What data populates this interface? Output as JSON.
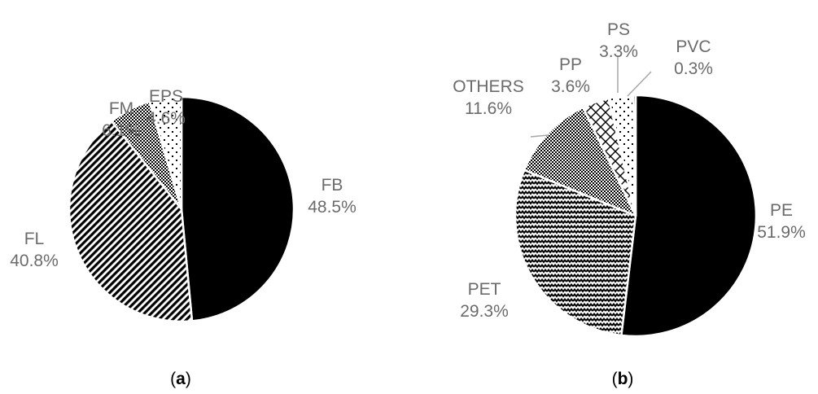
{
  "chart_data": [
    {
      "type": "pie",
      "caption": "(a)",
      "caption_letter": "a",
      "slices": [
        {
          "label": "FB",
          "value": 48.5,
          "value_label": "48.5%",
          "fill": "solid",
          "color": "#000000"
        },
        {
          "label": "FL",
          "value": 40.8,
          "value_label": "40.8%",
          "fill": "diagonal-stripes",
          "color": "#000000"
        },
        {
          "label": "FM",
          "value": 6.1,
          "value_label": "6.1%",
          "fill": "checker",
          "color": "#000000"
        },
        {
          "label": "EPS",
          "value": 4.6,
          "value_label": "4.6%",
          "fill": "sparse-dots",
          "color": "#000000"
        }
      ]
    },
    {
      "type": "pie",
      "caption": "(b)",
      "caption_letter": "b",
      "slices": [
        {
          "label": "PE",
          "value": 51.9,
          "value_label": "51.9%",
          "fill": "solid",
          "color": "#000000"
        },
        {
          "label": "PET",
          "value": 29.3,
          "value_label": "29.3%",
          "fill": "zigzag",
          "color": "#000000"
        },
        {
          "label": "OTHERS",
          "value": 11.6,
          "value_label": "11.6%",
          "fill": "checker",
          "color": "#000000"
        },
        {
          "label": "PP",
          "value": 3.6,
          "value_label": "3.6%",
          "fill": "diamond-lattice",
          "color": "#000000"
        },
        {
          "label": "PS",
          "value": 3.3,
          "value_label": "3.3%",
          "fill": "sparse-dots",
          "color": "#000000"
        },
        {
          "label": "PVC",
          "value": 0.3,
          "value_label": "0.3%",
          "fill": "solid",
          "color": "#000000"
        }
      ]
    }
  ],
  "colors": {
    "label_text": "#6b6b6b",
    "leader_line": "#a6a6a6",
    "caption_text": "#000000"
  }
}
